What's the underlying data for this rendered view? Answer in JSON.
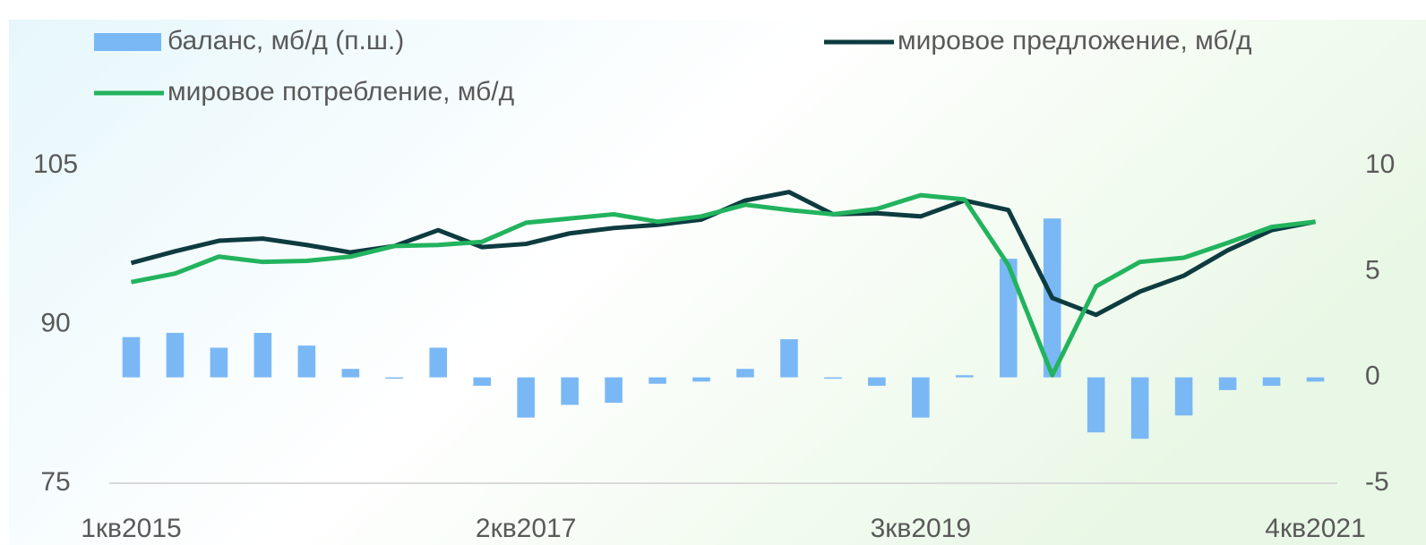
{
  "chart_data": {
    "type": "bar-line",
    "categories": [
      "1кв2015",
      null,
      null,
      null,
      null,
      null,
      null,
      null,
      null,
      "2кв2017",
      null,
      null,
      null,
      null,
      null,
      null,
      null,
      null,
      "3кв2019",
      null,
      null,
      null,
      null,
      null,
      null,
      null,
      null,
      "4кв2021"
    ],
    "series": [
      {
        "name": "баланс, мб/д (п.ш.)",
        "type": "bar",
        "axis": "y2",
        "color": "#7ab8f5",
        "values": [
          1.9,
          2.1,
          1.4,
          2.1,
          1.5,
          0.4,
          0.0,
          1.4,
          -0.4,
          -1.9,
          -1.3,
          -1.2,
          -0.3,
          -0.2,
          0.4,
          1.8,
          0.0,
          -0.4,
          -1.9,
          0.1,
          5.6,
          7.5,
          -2.6,
          -2.9,
          -1.8,
          -0.6,
          -0.4,
          -0.2
        ]
      },
      {
        "name": "мировое предложение, мб/д",
        "type": "line",
        "axis": "y",
        "color": "#0d3b40",
        "values": [
          95.8,
          96.9,
          97.9,
          98.1,
          97.5,
          96.8,
          97.4,
          98.9,
          97.3,
          97.6,
          98.6,
          99.1,
          99.4,
          99.9,
          101.7,
          102.5,
          100.4,
          100.5,
          100.2,
          101.7,
          100.8,
          92.5,
          90.9,
          93.1,
          94.6,
          97.0,
          98.9,
          99.7
        ]
      },
      {
        "name": "мировое потребление, мб/д",
        "type": "line",
        "axis": "y",
        "color": "#22b35e",
        "values": [
          94.0,
          94.8,
          96.4,
          95.9,
          96.0,
          96.4,
          97.4,
          97.5,
          97.8,
          99.6,
          100.0,
          100.4,
          99.7,
          100.2,
          101.3,
          100.8,
          100.4,
          100.9,
          102.2,
          101.8,
          95.6,
          85.2,
          93.6,
          95.9,
          96.3,
          97.7,
          99.2,
          99.7
        ]
      }
    ],
    "ylim": [
      75,
      105
    ],
    "yticks": [
      75,
      90,
      105
    ],
    "y2lim": [
      -5,
      10
    ],
    "y2ticks": [
      -5,
      0,
      5,
      10
    ],
    "grid": false,
    "legend": "top"
  }
}
